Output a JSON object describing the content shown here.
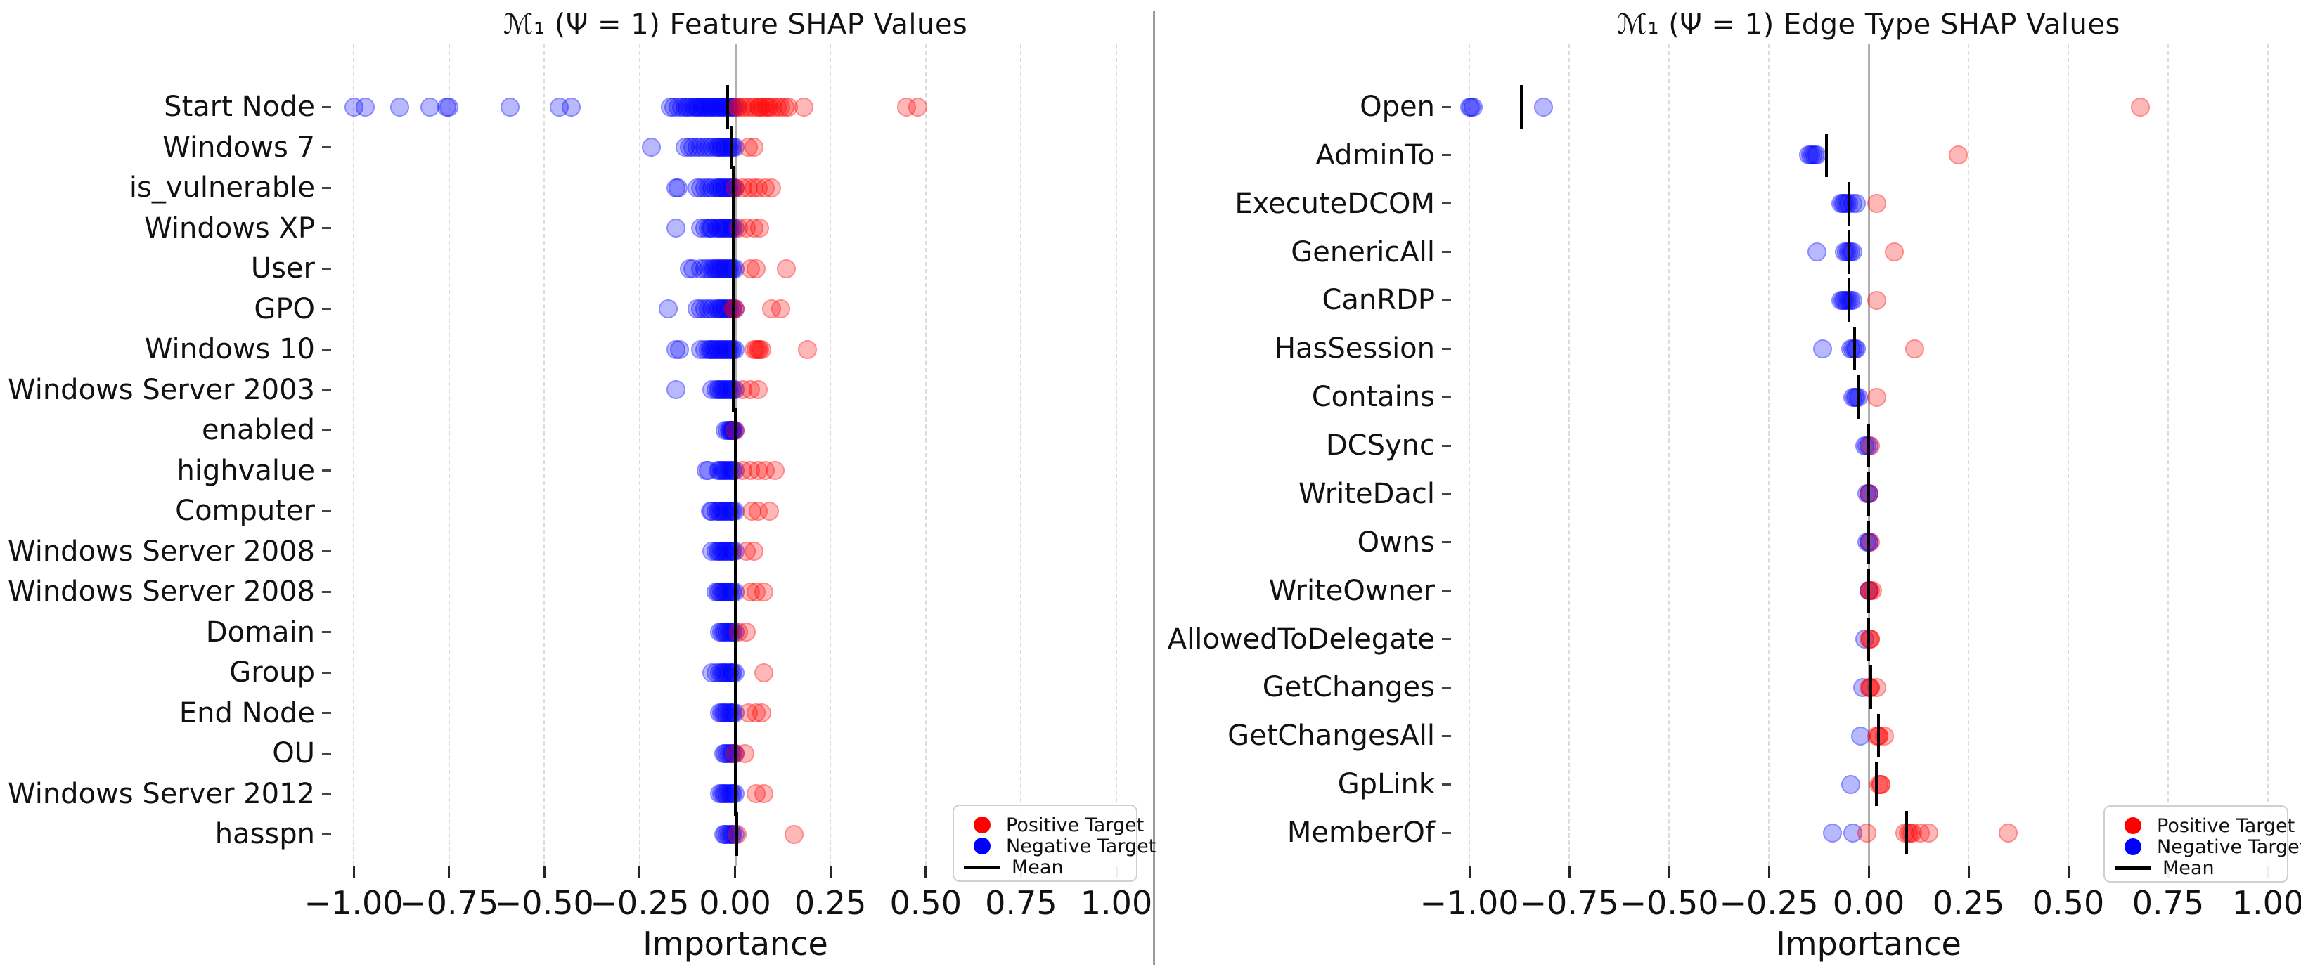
{
  "legend": {
    "positive": "Positive Target",
    "negative": "Negative Target",
    "mean": "Mean"
  },
  "colors": {
    "positive": "#ff0000",
    "negative": "#0000ff",
    "mean": "#000000",
    "grid": "#dcdcdc",
    "zero_line": "#b0b0b0",
    "divider": "#9a9a9a"
  },
  "chart_data": [
    {
      "type": "scatter",
      "title": "ℳ₁ (Ψ = 1)  Feature SHAP Values",
      "xlabel": "Importance",
      "xlim": [
        -1.09,
        1.08
      ],
      "grid": true,
      "legend_position": "lower right",
      "x_tick_values": [
        -1.0,
        -0.75,
        -0.5,
        -0.25,
        0.0,
        0.25,
        0.5,
        0.75,
        1.0
      ],
      "x_ticks": [
        "−1.00",
        "−0.75",
        "−0.50",
        "−0.25",
        "0.00",
        "0.25",
        "0.50",
        "0.75",
        "1.00"
      ],
      "rows": [
        {
          "label": "Start Node",
          "mean": -0.02,
          "neg": [
            -1.0,
            -0.97,
            -0.88,
            -0.8,
            -0.755,
            -0.75,
            -0.59,
            -0.46,
            -0.43,
            -0.17,
            -0.16,
            -0.15,
            -0.14,
            -0.13,
            -0.125,
            -0.12,
            -0.11,
            -0.105,
            -0.1,
            -0.095,
            -0.09,
            -0.085,
            -0.08,
            -0.075,
            -0.07,
            -0.065,
            -0.06,
            -0.055,
            -0.05,
            -0.045,
            -0.04,
            -0.035,
            -0.03,
            -0.025,
            -0.02,
            -0.015,
            -0.01,
            -0.005,
            0.0
          ],
          "pos": [
            0.005,
            0.01,
            0.02,
            0.03,
            0.04,
            0.05,
            0.06,
            0.065,
            0.07,
            0.08,
            0.085,
            0.09,
            0.1,
            0.11,
            0.12,
            0.13,
            0.14,
            0.18,
            0.45,
            0.48
          ]
        },
        {
          "label": "Windows 7",
          "mean": -0.01,
          "neg": [
            -0.22,
            -0.13,
            -0.12,
            -0.11,
            -0.1,
            -0.09,
            -0.08,
            -0.07,
            -0.06,
            -0.05,
            -0.045,
            -0.04,
            -0.035,
            -0.03,
            -0.025,
            -0.02,
            -0.015,
            -0.01,
            -0.005,
            0.0
          ],
          "pos": [
            0.035,
            0.05
          ]
        },
        {
          "label": "is_vulnerable",
          "mean": -0.005,
          "neg": [
            -0.155,
            -0.15,
            -0.1,
            -0.09,
            -0.08,
            -0.07,
            -0.06,
            -0.05,
            -0.045,
            -0.04,
            -0.035,
            -0.03,
            -0.025,
            -0.02,
            -0.015,
            -0.01,
            -0.005,
            0.0
          ],
          "pos": [
            0.0,
            0.02,
            0.035,
            0.05,
            0.06,
            0.08,
            0.095
          ]
        },
        {
          "label": "Windows XP",
          "mean": -0.005,
          "neg": [
            -0.155,
            -0.09,
            -0.08,
            -0.07,
            -0.065,
            -0.06,
            -0.05,
            -0.045,
            -0.04,
            -0.035,
            -0.03,
            -0.025,
            -0.02,
            -0.015,
            -0.01,
            -0.005,
            0.0
          ],
          "pos": [
            0.01,
            0.03,
            0.05,
            0.065
          ]
        },
        {
          "label": "User",
          "mean": -0.005,
          "neg": [
            -0.12,
            -0.11,
            -0.09,
            -0.08,
            -0.07,
            -0.06,
            -0.055,
            -0.05,
            -0.045,
            -0.04,
            -0.035,
            -0.03,
            -0.025,
            -0.02,
            -0.015,
            -0.01,
            -0.005,
            0.0
          ],
          "pos": [
            0.04,
            0.055,
            0.135
          ]
        },
        {
          "label": "GPO",
          "mean": -0.005,
          "neg": [
            -0.175,
            -0.1,
            -0.09,
            -0.08,
            -0.07,
            -0.06,
            -0.05,
            -0.045,
            -0.04,
            -0.035,
            -0.03,
            -0.025,
            -0.02,
            -0.015,
            -0.01,
            -0.005,
            0.0
          ],
          "pos": [
            -0.005,
            0.0,
            0.095,
            0.12
          ]
        },
        {
          "label": "Windows 10",
          "mean": -0.005,
          "neg": [
            -0.155,
            -0.145,
            -0.09,
            -0.08,
            -0.07,
            -0.065,
            -0.06,
            -0.055,
            -0.05,
            -0.045,
            -0.04,
            -0.035,
            -0.03,
            -0.025,
            -0.02,
            -0.015,
            -0.01,
            -0.005,
            0.0
          ],
          "pos": [
            0.05,
            0.055,
            0.06,
            0.065,
            0.07,
            0.19
          ]
        },
        {
          "label": "Windows Server 2003",
          "mean": -0.005,
          "neg": [
            -0.155,
            -0.06,
            -0.05,
            -0.045,
            -0.04,
            -0.035,
            -0.03,
            -0.025,
            -0.02,
            -0.015,
            -0.01,
            -0.005,
            0.0
          ],
          "pos": [
            0.02,
            0.04,
            0.06
          ]
        },
        {
          "label": "enabled",
          "mean": 0.0,
          "neg": [
            -0.025,
            -0.02,
            -0.015,
            -0.012,
            -0.01,
            -0.008,
            -0.005,
            -0.003,
            0.0
          ],
          "pos": [
            0.0
          ]
        },
        {
          "label": "highvalue",
          "mean": 0.0,
          "neg": [
            -0.075,
            -0.07,
            -0.045,
            -0.04,
            -0.035,
            -0.03,
            -0.025,
            -0.02,
            -0.015,
            -0.01,
            -0.005,
            0.0
          ],
          "pos": [
            0.02,
            0.04,
            0.06,
            0.08,
            0.105
          ]
        },
        {
          "label": "Computer",
          "mean": 0.0,
          "neg": [
            -0.065,
            -0.06,
            -0.05,
            -0.045,
            -0.04,
            -0.035,
            -0.03,
            -0.025,
            -0.02,
            -0.015,
            -0.01,
            -0.005,
            0.0
          ],
          "pos": [
            0.045,
            0.06,
            0.09
          ]
        },
        {
          "label": "Windows Server 2008",
          "mean": 0.0,
          "neg": [
            -0.06,
            -0.05,
            -0.045,
            -0.04,
            -0.035,
            -0.03,
            -0.025,
            -0.02,
            -0.015,
            -0.01,
            -0.005,
            0.0
          ],
          "pos": [
            0.03,
            0.05
          ]
        },
        {
          "label": "Windows Server 2008",
          "mean": 0.0,
          "neg": [
            -0.05,
            -0.045,
            -0.04,
            -0.035,
            -0.03,
            -0.025,
            -0.02,
            -0.015,
            -0.01,
            -0.005,
            0.0
          ],
          "pos": [
            0.04,
            0.055,
            0.075
          ]
        },
        {
          "label": "Domain",
          "mean": 0.0,
          "neg": [
            -0.04,
            -0.035,
            -0.03,
            -0.025,
            -0.02,
            -0.015,
            -0.01,
            -0.005,
            0.0
          ],
          "pos": [
            0.01,
            0.03
          ]
        },
        {
          "label": "Group",
          "mean": 0.0,
          "neg": [
            -0.06,
            -0.05,
            -0.04,
            -0.035,
            -0.03,
            -0.025,
            -0.02,
            -0.015,
            -0.01,
            -0.005,
            0.0
          ],
          "pos": [
            0.075
          ]
        },
        {
          "label": "End Node",
          "mean": 0.0,
          "neg": [
            -0.04,
            -0.035,
            -0.03,
            -0.025,
            -0.02,
            -0.015,
            -0.01,
            -0.005,
            0.0
          ],
          "pos": [
            0.035,
            0.055,
            0.07
          ]
        },
        {
          "label": "OU",
          "mean": 0.0,
          "neg": [
            -0.03,
            -0.025,
            -0.02,
            -0.015,
            -0.01,
            -0.005,
            0.0
          ],
          "pos": [
            0.0,
            0.025
          ]
        },
        {
          "label": "Windows Server 2012",
          "mean": 0.0,
          "neg": [
            -0.04,
            -0.035,
            -0.03,
            -0.025,
            -0.02,
            -0.015,
            -0.01,
            -0.005,
            0.0
          ],
          "pos": [
            0.055,
            0.075
          ]
        },
        {
          "label": "hasspn",
          "mean": 0.005,
          "neg": [
            -0.03,
            -0.025,
            -0.02,
            -0.015,
            -0.01,
            -0.005,
            0.0
          ],
          "pos": [
            0.005,
            0.155
          ]
        }
      ]
    },
    {
      "type": "scatter",
      "title": "ℳ₁ (Ψ = 1)  Edge Type SHAP Values",
      "xlabel": "Importance",
      "xlim": [
        -1.09,
        1.08
      ],
      "grid": true,
      "legend_position": "lower right",
      "x_tick_values": [
        -1.0,
        -0.75,
        -0.5,
        -0.25,
        0.0,
        0.25,
        0.5,
        0.75,
        1.0
      ],
      "x_ticks": [
        "−1.00",
        "−0.75",
        "−0.50",
        "−0.25",
        "0.00",
        "0.25",
        "0.50",
        "0.75",
        "1.00"
      ],
      "rows": [
        {
          "label": "Open",
          "mean": -0.87,
          "neg": [
            -1.0,
            -0.995,
            -0.99,
            -0.815
          ],
          "pos": [
            0.68
          ]
        },
        {
          "label": "AdminTo",
          "mean": -0.105,
          "neg": [
            -0.15,
            -0.145,
            -0.14,
            -0.135,
            -0.13
          ],
          "pos": [
            0.225
          ]
        },
        {
          "label": "ExecuteDCOM",
          "mean": -0.05,
          "neg": [
            -0.07,
            -0.065,
            -0.06,
            -0.055,
            -0.05,
            -0.04,
            -0.03
          ],
          "pos": [
            0.02
          ]
        },
        {
          "label": "GenericAll",
          "mean": -0.05,
          "neg": [
            -0.13,
            -0.06,
            -0.055,
            -0.05,
            -0.045,
            -0.04
          ],
          "pos": [
            0.065
          ]
        },
        {
          "label": "CanRDP",
          "mean": -0.05,
          "neg": [
            -0.07,
            -0.065,
            -0.06,
            -0.055,
            -0.05,
            -0.045,
            -0.04
          ],
          "pos": [
            0.02
          ]
        },
        {
          "label": "HasSession",
          "mean": -0.035,
          "neg": [
            -0.115,
            -0.045,
            -0.04,
            -0.035,
            -0.03
          ],
          "pos": [
            0.115
          ]
        },
        {
          "label": "Contains",
          "mean": -0.025,
          "neg": [
            -0.04,
            -0.035,
            -0.03,
            -0.025
          ],
          "pos": [
            0.02
          ]
        },
        {
          "label": "DCSync",
          "mean": 0.0,
          "neg": [
            -0.01,
            -0.005,
            0.0
          ],
          "pos": [
            0.005
          ]
        },
        {
          "label": "WriteDacl",
          "mean": 0.0,
          "neg": [
            -0.005,
            0.0,
            0.0
          ],
          "pos": [
            0.0
          ]
        },
        {
          "label": "Owns",
          "mean": 0.0,
          "neg": [
            -0.005,
            0.0,
            0.0
          ],
          "pos": [
            0.005
          ]
        },
        {
          "label": "WriteOwner",
          "mean": 0.0,
          "neg": [
            0.0,
            0.0
          ],
          "pos": [
            0.0,
            0.005,
            0.01
          ]
        },
        {
          "label": "AllowedToDelegate",
          "mean": 0.0,
          "neg": [
            -0.01
          ],
          "pos": [
            0.0,
            0.005,
            0.005
          ]
        },
        {
          "label": "GetChanges",
          "mean": 0.005,
          "neg": [
            -0.015
          ],
          "pos": [
            0.0,
            0.005,
            0.005,
            0.02
          ]
        },
        {
          "label": "GetChangesAll",
          "mean": 0.025,
          "neg": [
            -0.02
          ],
          "pos": [
            0.02,
            0.025,
            0.025,
            0.04
          ]
        },
        {
          "label": "GpLink",
          "mean": 0.02,
          "neg": [
            -0.045
          ],
          "pos": [
            0.025,
            0.03,
            0.03
          ]
        },
        {
          "label": "MemberOf",
          "mean": 0.095,
          "neg": [
            -0.09,
            -0.04
          ],
          "pos": [
            -0.005,
            0.09,
            0.1,
            0.105,
            0.11,
            0.13,
            0.15,
            0.35
          ]
        }
      ]
    }
  ]
}
